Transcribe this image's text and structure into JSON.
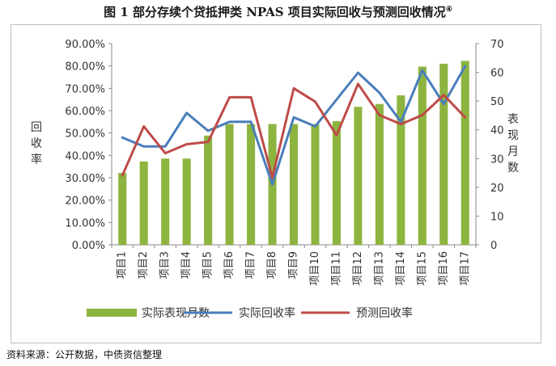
{
  "title": "图 1  部分存续个贷抵押类 NPAS 项目实际回收与预测回收情况",
  "title_note": "④",
  "source": "资料来源：公开数据，中债资信整理",
  "chart_data": {
    "type": "bar+line",
    "categories": [
      "项目1",
      "项目2",
      "项目3",
      "项目4",
      "项目5",
      "项目6",
      "项目7",
      "项目8",
      "项目9",
      "项目10",
      "项目11",
      "项目12",
      "项目13",
      "项目14",
      "项目15",
      "项目16",
      "项目17"
    ],
    "left_axis": {
      "label": "回收率",
      "min": 0,
      "max": 0.9,
      "step": 0.1,
      "ticks": [
        "0.00%",
        "10.00%",
        "20.00%",
        "30.00%",
        "40.00%",
        "50.00%",
        "60.00%",
        "70.00%",
        "80.00%",
        "90.00%"
      ]
    },
    "right_axis": {
      "label": "表现月数",
      "min": 0,
      "max": 70,
      "step": 10,
      "ticks": [
        "0",
        "10",
        "20",
        "30",
        "40",
        "50",
        "60",
        "70"
      ]
    },
    "series": [
      {
        "name": "实际表现月数",
        "type": "bar",
        "axis": "right",
        "color": "#8db43f",
        "values": [
          25,
          29,
          30,
          30,
          38,
          42,
          42,
          42,
          42,
          42,
          43,
          48,
          49,
          52,
          62,
          63,
          64
        ]
      },
      {
        "name": "实际回收率",
        "type": "line",
        "axis": "left",
        "color": "#4a7ebb",
        "values": [
          0.48,
          0.44,
          0.44,
          0.59,
          0.51,
          0.55,
          0.55,
          0.27,
          0.57,
          0.53,
          0.65,
          0.77,
          0.68,
          0.55,
          0.78,
          0.63,
          0.8
        ]
      },
      {
        "name": "预测回收率",
        "type": "line",
        "axis": "left",
        "color": "#be4b48",
        "values": [
          0.31,
          0.53,
          0.41,
          0.45,
          0.46,
          0.66,
          0.66,
          0.3,
          0.7,
          0.64,
          0.49,
          0.72,
          0.58,
          0.54,
          0.58,
          0.67,
          0.57
        ]
      }
    ]
  }
}
